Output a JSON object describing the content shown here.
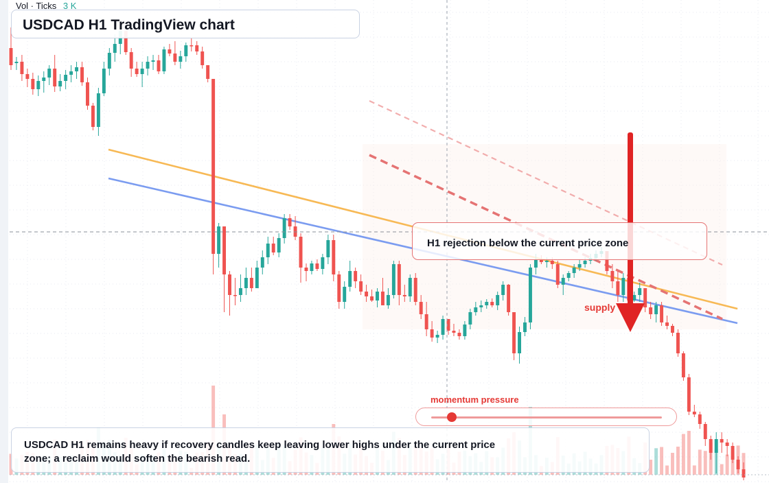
{
  "header": {
    "title": "USDCAD H1 TradingView chart"
  },
  "volume_legend": {
    "label": "Vol · Ticks",
    "value": "3 K"
  },
  "annotations": {
    "callout": "H1 rejection below the current price zone",
    "zone_label": "supply",
    "momentum_label": "momentum pressure",
    "momentum_level": 0.07,
    "note": "USDCAD H1 remains heavy if recovery candles keep leaving lower highs under the current price zone; a reclaim would soften the bearish read."
  },
  "colors": {
    "up": "#26a69a",
    "down": "#ef5350",
    "accent": "#e53935",
    "trend_orange": "#f7b955",
    "trend_blue": "#7b9cf0"
  },
  "chart_data": {
    "type": "candlestick",
    "title": "USDCAD H1 TradingView chart",
    "ylim": [
      0,
      704
    ],
    "ohlc": [
      [
        70,
        40,
        102,
        95
      ],
      [
        92,
        83,
        102,
        90
      ],
      [
        90,
        80,
        118,
        108
      ],
      [
        108,
        100,
        127,
        115
      ],
      [
        115,
        106,
        138,
        130
      ],
      [
        130,
        110,
        140,
        118
      ],
      [
        118,
        104,
        135,
        113
      ],
      [
        113,
        95,
        124,
        100
      ],
      [
        100,
        80,
        134,
        126
      ],
      [
        126,
        108,
        133,
        118
      ],
      [
        118,
        102,
        130,
        109
      ],
      [
        109,
        95,
        120,
        104
      ],
      [
        104,
        90,
        115,
        98
      ],
      [
        98,
        90,
        125,
        120
      ],
      [
        120,
        113,
        160,
        154
      ],
      [
        154,
        150,
        190,
        185
      ],
      [
        185,
        128,
        198,
        136
      ],
      [
        136,
        90,
        140,
        100
      ],
      [
        100,
        70,
        110,
        77
      ],
      [
        77,
        50,
        90,
        64
      ],
      [
        64,
        36,
        79,
        45
      ],
      [
        45,
        50,
        80,
        76
      ],
      [
        76,
        70,
        112,
        100
      ],
      [
        100,
        90,
        112,
        108
      ],
      [
        108,
        90,
        127,
        100
      ],
      [
        100,
        82,
        110,
        90
      ],
      [
        90,
        80,
        102,
        88
      ],
      [
        88,
        80,
        108,
        104
      ],
      [
        104,
        68,
        108,
        72
      ],
      [
        72,
        64,
        82,
        78
      ],
      [
        78,
        60,
        95,
        90
      ],
      [
        90,
        74,
        100,
        82
      ],
      [
        82,
        62,
        90,
        66
      ],
      [
        66,
        55,
        75,
        66
      ],
      [
        66,
        60,
        80,
        75
      ],
      [
        75,
        68,
        100,
        95
      ],
      [
        95,
        100,
        120,
        115
      ],
      [
        115,
        120,
        400,
        370
      ],
      [
        370,
        325,
        390,
        330
      ],
      [
        330,
        330,
        455,
        400
      ],
      [
        400,
        395,
        460,
        430
      ],
      [
        430,
        405,
        445,
        430
      ],
      [
        430,
        400,
        440,
        420
      ],
      [
        420,
        390,
        430,
        405
      ],
      [
        405,
        390,
        425,
        420
      ],
      [
        420,
        380,
        415,
        390
      ],
      [
        390,
        365,
        400,
        375
      ],
      [
        375,
        345,
        385,
        355
      ],
      [
        355,
        345,
        372,
        368
      ],
      [
        368,
        340,
        375,
        347
      ],
      [
        347,
        312,
        355,
        318
      ],
      [
        318,
        312,
        335,
        330
      ],
      [
        330,
        315,
        350,
        345
      ],
      [
        345,
        340,
        412,
        390
      ],
      [
        390,
        384,
        410,
        395
      ],
      [
        395,
        380,
        400,
        384
      ],
      [
        384,
        378,
        395,
        392
      ],
      [
        392,
        370,
        400,
        375
      ],
      [
        375,
        342,
        385,
        350
      ],
      [
        350,
        342,
        410,
        400
      ],
      [
        400,
        395,
        450,
        440
      ],
      [
        440,
        410,
        450,
        418
      ],
      [
        418,
        380,
        425,
        395
      ],
      [
        395,
        390,
        420,
        410
      ],
      [
        410,
        400,
        430,
        425
      ],
      [
        425,
        415,
        440,
        432
      ],
      [
        432,
        422,
        440,
        438
      ],
      [
        438,
        420,
        448,
        425
      ],
      [
        425,
        405,
        445,
        445
      ],
      [
        445,
        420,
        450,
        430
      ],
      [
        430,
        380,
        435,
        385
      ],
      [
        385,
        380,
        445,
        430
      ],
      [
        430,
        415,
        440,
        432
      ],
      [
        432,
        400,
        440,
        405
      ],
      [
        405,
        398,
        445,
        440
      ],
      [
        440,
        430,
        465,
        458
      ],
      [
        458,
        440,
        490,
        480
      ],
      [
        480,
        468,
        498,
        492
      ],
      [
        492,
        482,
        500,
        488
      ],
      [
        488,
        460,
        495,
        465
      ],
      [
        465,
        478,
        488,
        482
      ],
      [
        482,
        472,
        490,
        485
      ],
      [
        485,
        480,
        495,
        490
      ],
      [
        490,
        468,
        495,
        473
      ],
      [
        473,
        450,
        480,
        455
      ],
      [
        455,
        440,
        460,
        448
      ],
      [
        448,
        438,
        455,
        445
      ],
      [
        445,
        436,
        450,
        440
      ],
      [
        440,
        435,
        448,
        445
      ],
      [
        445,
        425,
        452,
        430
      ],
      [
        430,
        410,
        438,
        415
      ],
      [
        415,
        414,
        460,
        455
      ],
      [
        455,
        480,
        525,
        515
      ],
      [
        515,
        476,
        530,
        484
      ],
      [
        484,
        462,
        490,
        470
      ],
      [
        470,
        385,
        480,
        390
      ],
      [
        390,
        370,
        400,
        378
      ],
      [
        378,
        372,
        385,
        382
      ],
      [
        382,
        375,
        390,
        380
      ],
      [
        380,
        375,
        392,
        385
      ],
      [
        385,
        380,
        420,
        415
      ],
      [
        415,
        400,
        430,
        405
      ],
      [
        405,
        395,
        410,
        398
      ],
      [
        398,
        385,
        405,
        390
      ],
      [
        390,
        378,
        395,
        385
      ],
      [
        385,
        375,
        390,
        380
      ],
      [
        380,
        370,
        385,
        376
      ],
      [
        376,
        365,
        380,
        370
      ],
      [
        370,
        360,
        375,
        366
      ],
      [
        366,
        370,
        400,
        395
      ],
      [
        395,
        385,
        420,
        410
      ],
      [
        410,
        395,
        440,
        430
      ],
      [
        430,
        398,
        440,
        405
      ],
      [
        405,
        400,
        445,
        438
      ],
      [
        438,
        425,
        440,
        430
      ],
      [
        430,
        412,
        440,
        420
      ],
      [
        420,
        430,
        455,
        448
      ],
      [
        448,
        440,
        465,
        458
      ],
      [
        458,
        440,
        470,
        445
      ],
      [
        445,
        440,
        475,
        470
      ],
      [
        470,
        460,
        480,
        475
      ],
      [
        475,
        472,
        490,
        485
      ],
      [
        485,
        480,
        520,
        515
      ],
      [
        515,
        512,
        555,
        550
      ],
      [
        550,
        545,
        605,
        600
      ],
      [
        600,
        590,
        608,
        604
      ],
      [
        604,
        600,
        625,
        618
      ],
      [
        618,
        615,
        650,
        640
      ],
      [
        640,
        635,
        670,
        660
      ],
      [
        660,
        630,
        690,
        640
      ],
      [
        640,
        630,
        660,
        645
      ],
      [
        645,
        640,
        665,
        650
      ],
      [
        650,
        645,
        675,
        670
      ],
      [
        670,
        665,
        690,
        684
      ],
      [
        684,
        674,
        700,
        696
      ]
    ],
    "trendlines": [
      {
        "name": "",
        "color": "#f7b955",
        "from": [
          158,
          218
        ],
        "to": [
          1074,
          450
        ]
      },
      {
        "name": "",
        "color": "#7b9cf0",
        "from": [
          158,
          260
        ],
        "to": [
          1074,
          471
        ]
      },
      {
        "name": "",
        "color": "#ef9a9a",
        "from": [
          538,
          147
        ],
        "to": [
          1052,
          386
        ]
      },
      {
        "name": "",
        "color": "#e57373",
        "from": [
          538,
          226
        ],
        "to": [
          1052,
          465
        ]
      }
    ],
    "current_price_line": 338
  }
}
